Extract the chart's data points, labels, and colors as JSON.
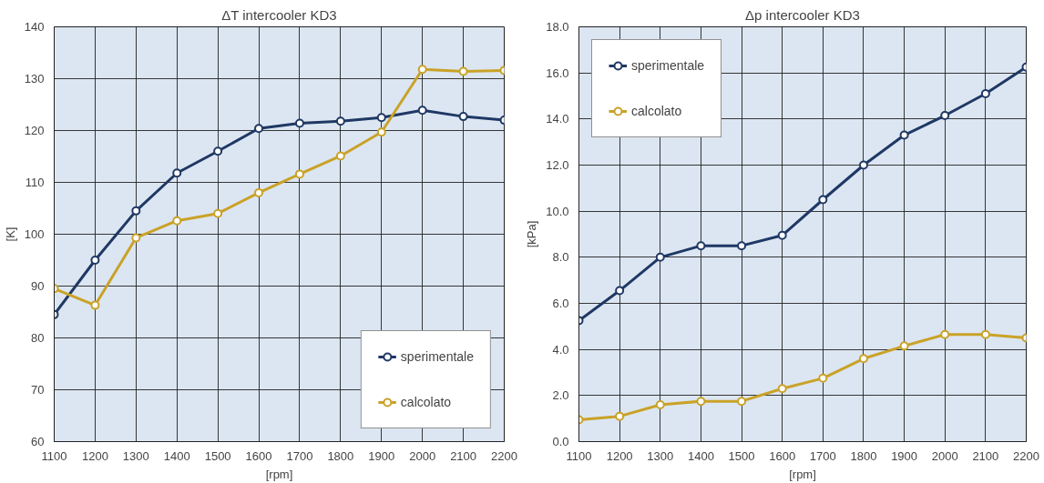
{
  "chart_data": [
    {
      "type": "line",
      "title": "ΔT intercooler KD3",
      "xlabel": "[rpm]",
      "ylabel": "[K]",
      "x": [
        1100,
        1200,
        1300,
        1400,
        1500,
        1600,
        1700,
        1800,
        1900,
        2000,
        2100,
        2200
      ],
      "series": [
        {
          "name": "sperimentale",
          "color": "#1f3864",
          "values": [
            84.5,
            95,
            104.5,
            111.8,
            116,
            120.4,
            121.4,
            121.8,
            122.5,
            123.9,
            122.7,
            122
          ]
        },
        {
          "name": "calcolato",
          "color": "#c9a227",
          "values": [
            89.5,
            86.3,
            99.3,
            102.6,
            104,
            108,
            111.6,
            115.1,
            119.7,
            131.8,
            131.4,
            131.6
          ]
        }
      ],
      "xlim": [
        1100,
        2200
      ],
      "xticks": [
        1100,
        1200,
        1300,
        1400,
        1500,
        1600,
        1700,
        1800,
        1900,
        2000,
        2100,
        2200
      ],
      "ylim": [
        60,
        140
      ],
      "yticks": [
        60,
        70,
        80,
        90,
        100,
        110,
        120,
        130,
        140
      ],
      "grid": true,
      "legend": "bottom right",
      "marker": "circle",
      "line_style": "solid"
    },
    {
      "type": "line",
      "title": "Δp intercooler KD3",
      "xlabel": "[rpm]",
      "ylabel": "[kPa]",
      "x": [
        1100,
        1200,
        1300,
        1400,
        1500,
        1600,
        1700,
        1800,
        1900,
        2000,
        2100,
        2200
      ],
      "series": [
        {
          "name": "sperimentale",
          "color": "#1f3864",
          "values": [
            5.25,
            6.55,
            8.0,
            8.5,
            8.5,
            8.95,
            10.5,
            12.0,
            13.3,
            14.15,
            15.1,
            16.25
          ]
        },
        {
          "name": "calcolato",
          "color": "#c9a227",
          "values": [
            0.95,
            1.1,
            1.6,
            1.75,
            1.75,
            2.3,
            2.75,
            3.6,
            4.15,
            4.65,
            4.65,
            4.5
          ]
        }
      ],
      "xlim": [
        1100,
        2200
      ],
      "xticks": [
        1100,
        1200,
        1300,
        1400,
        1500,
        1600,
        1700,
        1800,
        1900,
        2000,
        2100,
        2200
      ],
      "ylim": [
        0,
        18
      ],
      "yticks": [
        {
          "value": 0,
          "label": "0.0"
        },
        {
          "value": 2,
          "label": "2.0"
        },
        {
          "value": 4,
          "label": "4.0"
        },
        {
          "value": 6,
          "label": "6.0"
        },
        {
          "value": 8,
          "label": "8.0"
        },
        {
          "value": 10,
          "label": "10.0"
        },
        {
          "value": 12,
          "label": "12.0"
        },
        {
          "value": 14,
          "label": "14.0"
        },
        {
          "value": 16,
          "label": "16.0"
        },
        {
          "value": 18,
          "label": "18.0"
        }
      ],
      "grid": true,
      "legend": "top left",
      "marker": "circle",
      "line_style": "solid"
    }
  ]
}
